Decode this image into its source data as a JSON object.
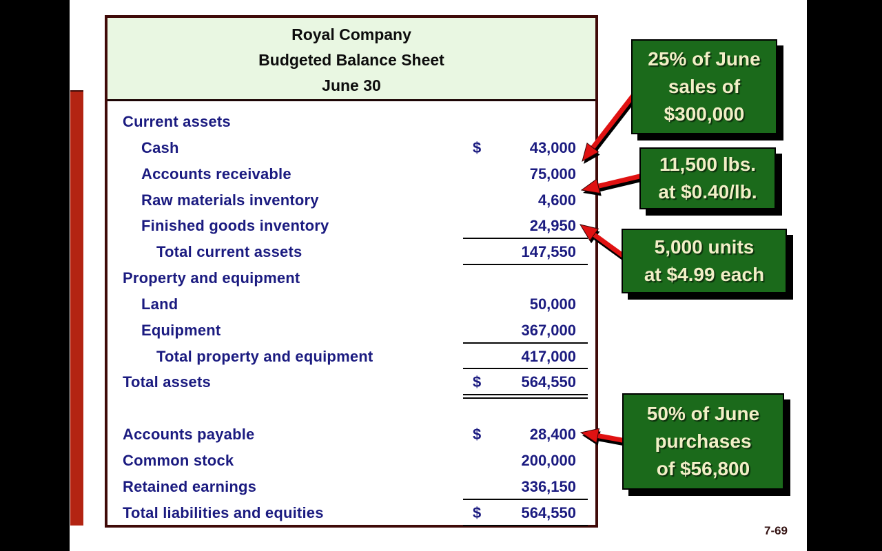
{
  "page": {
    "page_number": "7-69"
  },
  "colors": {
    "side_bars": "#000000",
    "accent_bar_red": "#b32412",
    "table_border_maroon": "#3f0a08",
    "header_green": "#e9f7e2",
    "body_text_navy": "#1b1b80",
    "callout_green": "#1b6a1b",
    "callout_text_cream": "#f2efc7",
    "arrow_red": "#e01212"
  },
  "balance_sheet": {
    "title_lines": [
      "Royal Company",
      "Budgeted Balance Sheet",
      "June 30"
    ],
    "rows": [
      {
        "label": "Current assets",
        "indent": 0,
        "dollar": "",
        "value": "",
        "underline": "none"
      },
      {
        "label": "Cash",
        "indent": 1,
        "dollar": "$",
        "value": "43,000",
        "underline": "none"
      },
      {
        "label": "Accounts receivable",
        "indent": 1,
        "dollar": "",
        "value": "75,000",
        "underline": "none"
      },
      {
        "label": "Raw materials inventory",
        "indent": 1,
        "dollar": "",
        "value": "4,600",
        "underline": "none"
      },
      {
        "label": "Finished goods inventory",
        "indent": 1,
        "dollar": "",
        "value": "24,950",
        "underline": "single"
      },
      {
        "label": "Total current assets",
        "indent": 2,
        "dollar": "",
        "value": "147,550",
        "underline": "single"
      },
      {
        "label": "Property and equipment",
        "indent": 0,
        "dollar": "",
        "value": "",
        "underline": "none"
      },
      {
        "label": "Land",
        "indent": 1,
        "dollar": "",
        "value": "50,000",
        "underline": "none"
      },
      {
        "label": "Equipment",
        "indent": 1,
        "dollar": "",
        "value": "367,000",
        "underline": "single"
      },
      {
        "label": "Total property and equipment",
        "indent": 2,
        "dollar": "",
        "value": "417,000",
        "underline": "single"
      },
      {
        "label": "Total assets",
        "indent": 0,
        "dollar": "$",
        "value": "564,550",
        "underline": "double"
      },
      {
        "label": "",
        "indent": 0,
        "dollar": "",
        "value": "",
        "underline": "none"
      },
      {
        "label": "Accounts payable",
        "indent": 0,
        "dollar": "$",
        "value": "28,400",
        "underline": "none"
      },
      {
        "label": "Common stock",
        "indent": 0,
        "dollar": "",
        "value": "200,000",
        "underline": "none"
      },
      {
        "label": "Retained earnings",
        "indent": 0,
        "dollar": "",
        "value": "336,150",
        "underline": "single"
      },
      {
        "label": "Total liabilities and equities",
        "indent": 0,
        "dollar": "$",
        "value": "564,550",
        "underline": "single"
      }
    ]
  },
  "callouts": [
    {
      "id": "june-sales",
      "lines": [
        "25% of June",
        "sales of",
        "$300,000"
      ],
      "points_to": "Accounts receivable 75,000"
    },
    {
      "id": "raw-materials",
      "lines": [
        "11,500 lbs.",
        "at $0.40/lb."
      ],
      "points_to": "Raw materials inventory 4,600"
    },
    {
      "id": "finished-goods",
      "lines": [
        "5,000 units",
        "at $4.99 each"
      ],
      "points_to": "Finished goods inventory 24,950"
    },
    {
      "id": "june-purchases",
      "lines": [
        "50% of June",
        "purchases",
        "of $56,800"
      ],
      "points_to": "Accounts payable 28,400"
    }
  ]
}
